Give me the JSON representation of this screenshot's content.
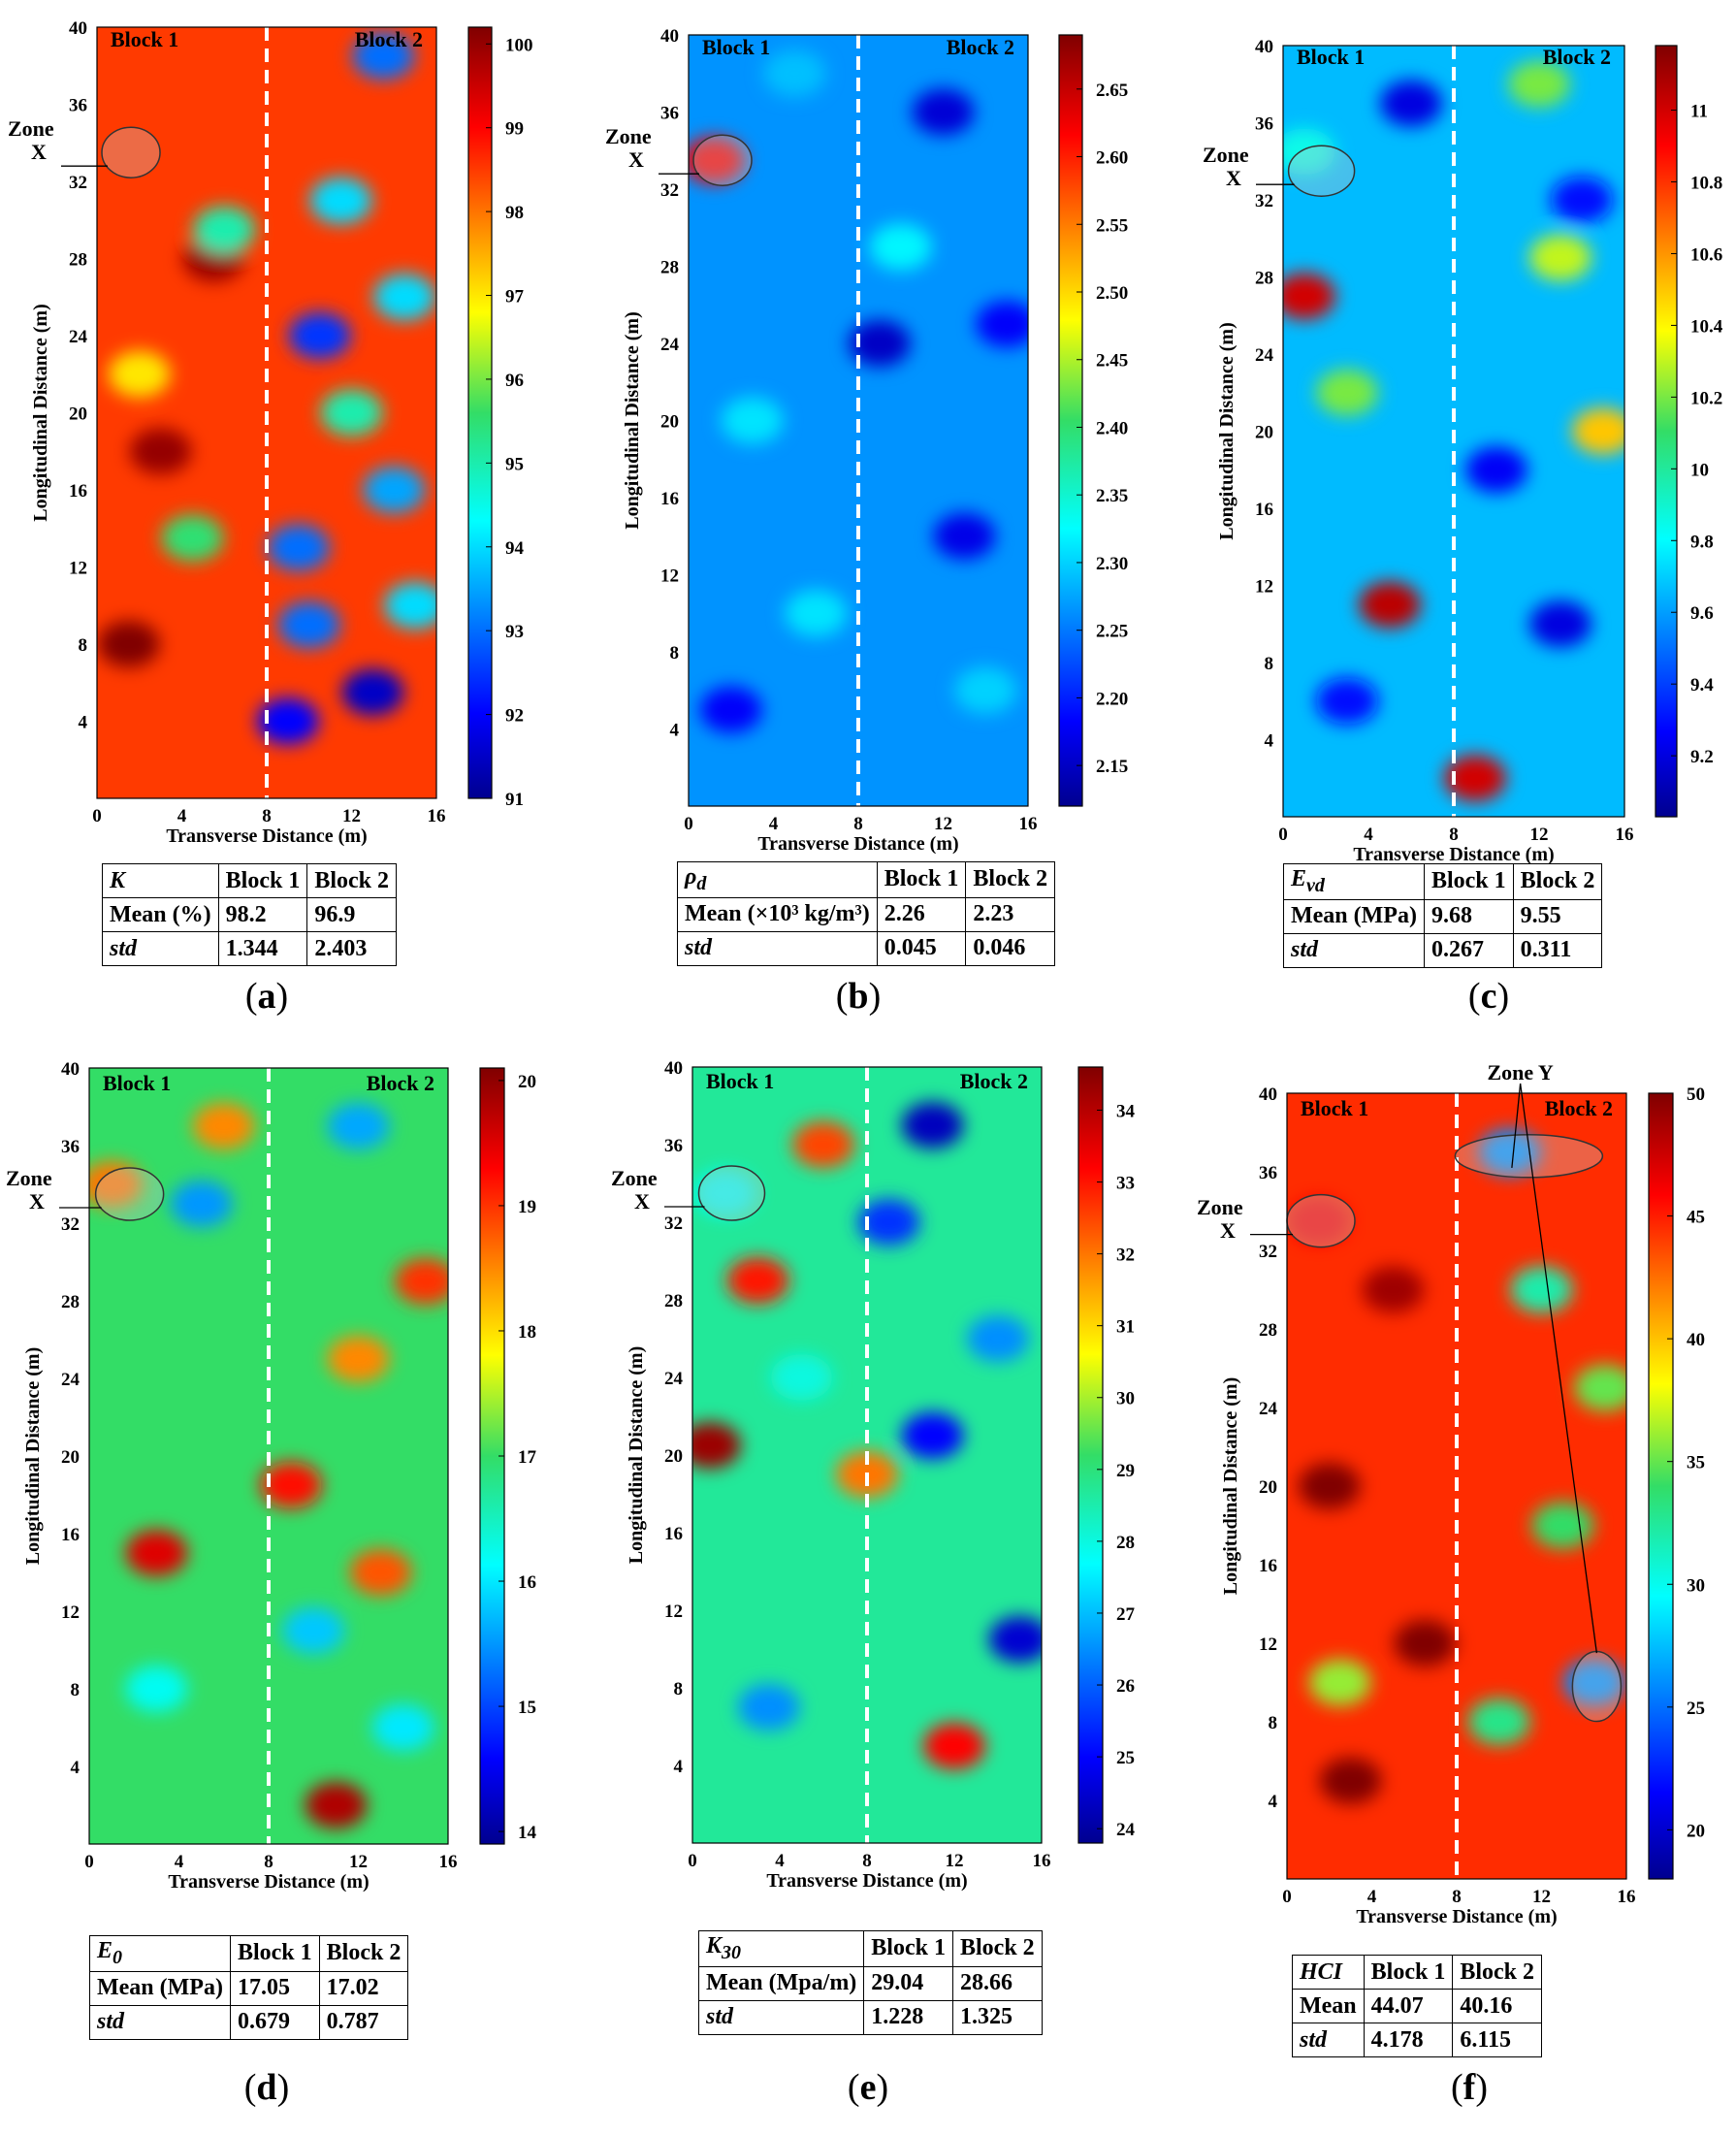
{
  "common": {
    "xlabel": "Transverse Distance (m)",
    "ylabel": "Longitudinal Distance (m)",
    "x_ticks": [
      "0",
      "4",
      "8",
      "12",
      "16"
    ],
    "y_ticks": [
      "4",
      "8",
      "12",
      "16",
      "20",
      "24",
      "28",
      "32",
      "36",
      "40"
    ],
    "block1_label": "Block 1",
    "block2_label": "Block 2",
    "zone_x_word": "Zone",
    "zone_x_letter": "X",
    "zone_y_label": "Zone Y",
    "row_mean_label": "Mean",
    "row_std_label": "std",
    "col_block1": "Block 1",
    "col_block2": "Block 2"
  },
  "chart_data": [
    {
      "id": "a",
      "type": "heatmap",
      "panel_label": "(a)",
      "panel_letter": "a",
      "x_range": [
        0,
        16
      ],
      "y_range": [
        0,
        40
      ],
      "divider_x": 8,
      "colorbar": {
        "min": 91,
        "max": 100.2,
        "ticks": [
          "91",
          "92",
          "93",
          "94",
          "95",
          "96",
          "97",
          "98",
          "99",
          "100"
        ]
      },
      "stats": {
        "param": "K",
        "param_sub": "",
        "mean_label": "Mean (%)",
        "mean": [
          "98.2",
          "96.9"
        ],
        "std": [
          "1.344",
          "2.403"
        ]
      },
      "blobs": [
        {
          "x": 1.5,
          "y": 8,
          "v": 100.2
        },
        {
          "x": 3,
          "y": 18,
          "v": 100
        },
        {
          "x": 5.5,
          "y": 28,
          "v": 100
        },
        {
          "x": 9,
          "y": 4,
          "v": 92
        },
        {
          "x": 13,
          "y": 5.5,
          "v": 91.5
        },
        {
          "x": 10.5,
          "y": 24,
          "v": 92.5
        },
        {
          "x": 13.5,
          "y": 38.5,
          "v": 93
        },
        {
          "x": 9.5,
          "y": 13,
          "v": 93
        },
        {
          "x": 14,
          "y": 16,
          "v": 93.5
        },
        {
          "x": 11.5,
          "y": 31,
          "v": 94
        },
        {
          "x": 14.5,
          "y": 26,
          "v": 94
        },
        {
          "x": 10,
          "y": 9,
          "v": 93
        },
        {
          "x": 6,
          "y": 29.5,
          "v": 95
        },
        {
          "x": 4.5,
          "y": 13.5,
          "v": 95.5
        },
        {
          "x": 2,
          "y": 22,
          "v": 97
        },
        {
          "x": 12,
          "y": 20,
          "v": 95
        },
        {
          "x": 15,
          "y": 10,
          "v": 94
        }
      ]
    },
    {
      "id": "b",
      "type": "heatmap",
      "panel_label": "(b)",
      "panel_letter": "b",
      "x_range": [
        0,
        16
      ],
      "y_range": [
        0,
        40
      ],
      "divider_x": 8,
      "colorbar": {
        "min": 2.12,
        "max": 2.69,
        "ticks": [
          "2.15",
          "2.20",
          "2.25",
          "2.30",
          "2.35",
          "2.40",
          "2.45",
          "2.50",
          "2.55",
          "2.60",
          "2.65"
        ]
      },
      "stats": {
        "param": "ρ",
        "param_sub": "d",
        "mean_label": "Mean (×10³ kg/m³)",
        "mean": [
          "2.26",
          "2.23"
        ],
        "std": [
          "0.045",
          "0.046"
        ]
      },
      "blobs": [
        {
          "x": 1.2,
          "y": 33.5,
          "v": 2.62
        },
        {
          "x": 3,
          "y": 20,
          "v": 2.31
        },
        {
          "x": 6,
          "y": 10,
          "v": 2.31
        },
        {
          "x": 10,
          "y": 29,
          "v": 2.32
        },
        {
          "x": 14,
          "y": 6,
          "v": 2.3
        },
        {
          "x": 9,
          "y": 24,
          "v": 2.15
        },
        {
          "x": 12,
          "y": 36,
          "v": 2.16
        },
        {
          "x": 13,
          "y": 14,
          "v": 2.17
        },
        {
          "x": 2,
          "y": 5,
          "v": 2.18
        },
        {
          "x": 15,
          "y": 25,
          "v": 2.18
        },
        {
          "x": 5,
          "y": 38,
          "v": 2.29
        }
      ]
    },
    {
      "id": "c",
      "type": "heatmap",
      "panel_label": "(c)",
      "panel_letter": "c",
      "x_range": [
        0,
        16
      ],
      "y_range": [
        0,
        40
      ],
      "divider_x": 8,
      "colorbar": {
        "min": 9.03,
        "max": 11.18,
        "ticks": [
          "9.2",
          "9.4",
          "9.6",
          "9.8",
          "10",
          "10.2",
          "10.4",
          "10.6",
          "10.8",
          "11"
        ]
      },
      "stats": {
        "param": "E",
        "param_sub": "vd",
        "mean_label": "Mean (MPa)",
        "mean": [
          "9.68",
          "9.55"
        ],
        "std": [
          "0.267",
          "0.311"
        ]
      },
      "blobs": [
        {
          "x": 1,
          "y": 27,
          "v": 11
        },
        {
          "x": 5,
          "y": 11,
          "v": 11.05
        },
        {
          "x": 9,
          "y": 2,
          "v": 11
        },
        {
          "x": 15,
          "y": 20,
          "v": 10.5
        },
        {
          "x": 3,
          "y": 22,
          "v": 10.2
        },
        {
          "x": 13,
          "y": 29,
          "v": 10.3
        },
        {
          "x": 12,
          "y": 38,
          "v": 10.2
        },
        {
          "x": 13,
          "y": 10,
          "v": 9.2
        },
        {
          "x": 6,
          "y": 37,
          "v": 9.2
        },
        {
          "x": 10,
          "y": 18,
          "v": 9.25
        },
        {
          "x": 3,
          "y": 6,
          "v": 9.3
        },
        {
          "x": 14,
          "y": 32,
          "v": 9.3
        },
        {
          "x": 1,
          "y": 34.5,
          "v": 9.85
        }
      ]
    },
    {
      "id": "d",
      "type": "heatmap",
      "panel_label": "(d)",
      "panel_letter": "d",
      "x_range": [
        0,
        16
      ],
      "y_range": [
        0,
        40
      ],
      "divider_x": 8,
      "colorbar": {
        "min": 13.9,
        "max": 20.1,
        "ticks": [
          "14",
          "15",
          "16",
          "17",
          "18",
          "19",
          "20"
        ]
      },
      "stats": {
        "param": "E",
        "param_sub": "0",
        "mean_label": "Mean (MPa)",
        "mean": [
          "17.05",
          "17.02"
        ],
        "std": [
          "0.679",
          "0.787"
        ]
      },
      "blobs": [
        {
          "x": 11,
          "y": 2,
          "v": 19.8
        },
        {
          "x": 3,
          "y": 15,
          "v": 19.5
        },
        {
          "x": 9,
          "y": 18.5,
          "v": 19.2
        },
        {
          "x": 13,
          "y": 14,
          "v": 18.8
        },
        {
          "x": 15,
          "y": 29,
          "v": 19
        },
        {
          "x": 6,
          "y": 37,
          "v": 18.5
        },
        {
          "x": 12,
          "y": 25,
          "v": 18.5
        },
        {
          "x": 1,
          "y": 34,
          "v": 18.6
        },
        {
          "x": 5,
          "y": 33,
          "v": 15.5
        },
        {
          "x": 12,
          "y": 37,
          "v": 15.6
        },
        {
          "x": 10,
          "y": 11,
          "v": 15.8
        },
        {
          "x": 3,
          "y": 8,
          "v": 16.2
        },
        {
          "x": 14,
          "y": 6,
          "v": 16
        }
      ]
    },
    {
      "id": "e",
      "type": "heatmap",
      "panel_label": "(e)",
      "panel_letter": "e",
      "x_range": [
        0,
        16
      ],
      "y_range": [
        0,
        40
      ],
      "divider_x": 8,
      "colorbar": {
        "min": 23.8,
        "max": 34.6,
        "ticks": [
          "24",
          "25",
          "26",
          "27",
          "28",
          "29",
          "30",
          "31",
          "32",
          "33",
          "34"
        ]
      },
      "stats": {
        "param": "K",
        "param_sub": "30",
        "mean_label": "Mean (Mpa/m)",
        "mean": [
          "29.04",
          "28.66"
        ],
        "std": [
          "1.228",
          "1.325"
        ]
      },
      "blobs": [
        {
          "x": 0.8,
          "y": 20.5,
          "v": 34.3
        },
        {
          "x": 12,
          "y": 5,
          "v": 33.2
        },
        {
          "x": 3,
          "y": 29,
          "v": 33
        },
        {
          "x": 6,
          "y": 36,
          "v": 32.5
        },
        {
          "x": 8,
          "y": 19,
          "v": 32
        },
        {
          "x": 11,
          "y": 37,
          "v": 24.3
        },
        {
          "x": 15,
          "y": 10.5,
          "v": 24.5
        },
        {
          "x": 11,
          "y": 21,
          "v": 25
        },
        {
          "x": 9,
          "y": 32,
          "v": 25.5
        },
        {
          "x": 3.5,
          "y": 7,
          "v": 26.5
        },
        {
          "x": 14,
          "y": 26,
          "v": 26.5
        },
        {
          "x": 1.5,
          "y": 33.5,
          "v": 27.8
        },
        {
          "x": 5,
          "y": 24,
          "v": 28
        }
      ]
    },
    {
      "id": "f",
      "type": "heatmap",
      "panel_label": "(f)",
      "panel_letter": "f",
      "x_range": [
        0,
        16
      ],
      "y_range": [
        0,
        40
      ],
      "divider_x": 8,
      "colorbar": {
        "min": 18,
        "max": 50,
        "ticks": [
          "20",
          "25",
          "30",
          "35",
          "40",
          "45",
          "50"
        ]
      },
      "stats": {
        "param": "HCI",
        "param_sub": "",
        "mean_label": "Mean",
        "mean": [
          "44.07",
          "40.16"
        ],
        "std": [
          "4.178",
          "6.115"
        ]
      },
      "blobs": [
        {
          "x": 2,
          "y": 20,
          "v": 50
        },
        {
          "x": 6.5,
          "y": 12,
          "v": 50
        },
        {
          "x": 5,
          "y": 30,
          "v": 49
        },
        {
          "x": 3,
          "y": 5,
          "v": 50
        },
        {
          "x": 10.5,
          "y": 37,
          "v": 26
        },
        {
          "x": 14.5,
          "y": 10,
          "v": 26
        },
        {
          "x": 12,
          "y": 30,
          "v": 32
        },
        {
          "x": 13,
          "y": 18,
          "v": 34
        },
        {
          "x": 10,
          "y": 8,
          "v": 33
        },
        {
          "x": 2.5,
          "y": 10,
          "v": 36
        },
        {
          "x": 1.5,
          "y": 33.5,
          "v": 46
        },
        {
          "x": 15,
          "y": 25,
          "v": 35
        }
      ]
    }
  ]
}
